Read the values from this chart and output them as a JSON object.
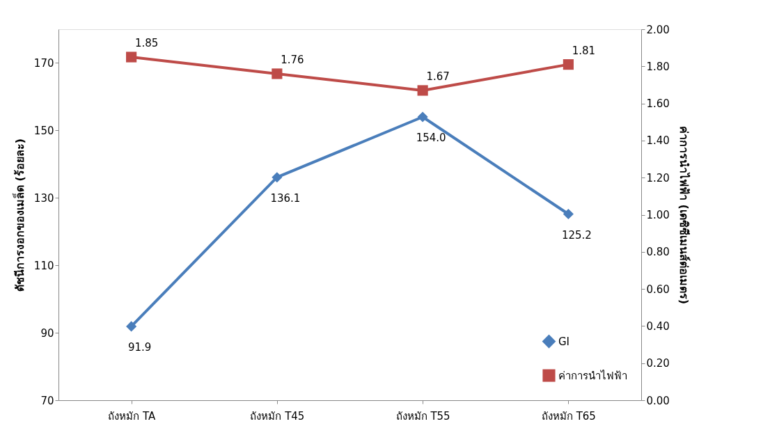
{
  "chart_data": {
    "type": "line",
    "categories": [
      "ถังหมัก TA",
      "ถังหมัก T45",
      "ถังหมัก T55",
      "ถังหมัก T65"
    ],
    "ylabel": "ดัชนีการงอกของเมล็ด (ร้อยละ)",
    "y2label": "ค่าการนำไฟฟ้า (เดซิซีเมนส์ต่อเมตร)",
    "ylim": [
      70,
      180
    ],
    "yticks": [
      70,
      90,
      110,
      130,
      150,
      170
    ],
    "y2lim": [
      0,
      2
    ],
    "y2ticks": [
      {
        "value": 0,
        "label": "0.00"
      },
      {
        "value": 0.2,
        "label": "0.20"
      },
      {
        "value": 0.4,
        "label": "0.40"
      },
      {
        "value": 0.6,
        "label": "0.60"
      },
      {
        "value": 0.8,
        "label": "0.80"
      },
      {
        "value": 1,
        "label": "1.00"
      },
      {
        "value": 1.2,
        "label": "1.20"
      },
      {
        "value": 1.4,
        "label": "1.40"
      },
      {
        "value": 1.6,
        "label": "1.60"
      },
      {
        "value": 1.8,
        "label": "1.80"
      },
      {
        "value": 2,
        "label": "2.00"
      }
    ],
    "series": [
      {
        "name": "GI",
        "color": "#4a7ebb",
        "marker": "diamond",
        "values": [
          91.9,
          136.1,
          154.0,
          125.2
        ],
        "value_labels": [
          "91.9",
          "136.1",
          "154.0",
          "125.2"
        ]
      },
      {
        "name": "ค่าการนำไฟฟ้า",
        "color": "#be4b48",
        "marker": "square",
        "axis": "y2",
        "values": [
          1.85,
          1.76,
          1.67,
          1.81
        ],
        "value_labels": [
          "1.85",
          "1.76",
          "1.67",
          "1.81"
        ]
      }
    ],
    "legend": "bottom right",
    "grid": false,
    "line_style": "solid"
  }
}
